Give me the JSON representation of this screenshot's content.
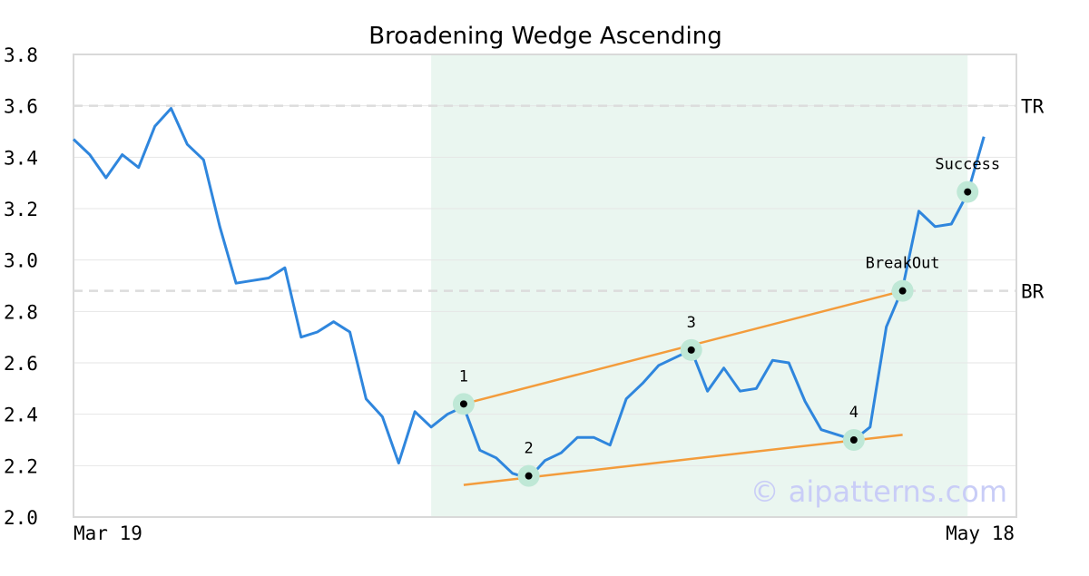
{
  "watermark": "© aipatterns.com",
  "chart_data": {
    "type": "line",
    "title": "Broadening Wedge Ascending",
    "x_tick_labels": [
      "Mar 19",
      "May 18"
    ],
    "x_range": [
      0,
      58
    ],
    "ylim": [
      2.0,
      3.8
    ],
    "y_ticks": [
      2.0,
      2.2,
      2.4,
      2.6,
      2.8,
      3.0,
      3.2,
      3.4,
      3.6,
      3.8
    ],
    "grid": true,
    "series": [
      {
        "color": "#2f86dd",
        "x": [
          0,
          1,
          2,
          3,
          4,
          5,
          6,
          7,
          8,
          9,
          10,
          11,
          12,
          13,
          14,
          15,
          16,
          17,
          18,
          19,
          20,
          21,
          22,
          23,
          24,
          25,
          26,
          27,
          28,
          29,
          30,
          31,
          32,
          33,
          34,
          35,
          36,
          37,
          38,
          39,
          40,
          41,
          42,
          43,
          44,
          45,
          46,
          47,
          48,
          49,
          50,
          51,
          52,
          53,
          54,
          55,
          56,
          57
        ],
        "values": [
          3.47,
          3.41,
          3.32,
          3.41,
          3.36,
          3.52,
          3.59,
          3.45,
          3.39,
          3.13,
          2.91,
          2.92,
          2.93,
          2.97,
          2.7,
          2.72,
          2.76,
          2.72,
          2.46,
          2.39,
          2.21,
          2.41,
          2.35,
          2.4,
          2.43,
          2.26,
          2.23,
          2.17,
          2.15,
          2.22,
          2.25,
          2.31,
          2.31,
          2.28,
          2.46,
          2.52,
          2.59,
          2.62,
          2.65,
          2.49,
          2.58,
          2.49,
          2.5,
          2.61,
          2.6,
          2.45,
          2.34,
          2.32,
          2.3,
          2.35,
          2.74,
          2.89,
          3.19,
          3.13,
          3.14,
          3.26,
          3.48,
          null
        ]
      }
    ],
    "shaded_region": {
      "x_start": 22,
      "x_end": 55,
      "color": "#eaf6f0"
    },
    "levels": [
      {
        "label": "TR",
        "value": 3.6
      },
      {
        "label": "BR",
        "value": 2.88
      }
    ],
    "trend_lines": [
      {
        "color": "#f39c3c",
        "x1": 24,
        "y1": 2.44,
        "x2": 51,
        "y2": 2.88
      },
      {
        "color": "#f39c3c",
        "x1": 24,
        "y1": 2.125,
        "x2": 51,
        "y2": 2.32
      }
    ],
    "markers": [
      {
        "label": "1",
        "x": 24,
        "y": 2.44
      },
      {
        "label": "2",
        "x": 28,
        "y": 2.16
      },
      {
        "label": "3",
        "x": 38,
        "y": 2.65
      },
      {
        "label": "4",
        "x": 48,
        "y": 2.3
      },
      {
        "label": "BreakOut",
        "x": 51,
        "y": 2.88
      },
      {
        "label": "Success",
        "x": 55,
        "y": 3.265
      }
    ]
  }
}
